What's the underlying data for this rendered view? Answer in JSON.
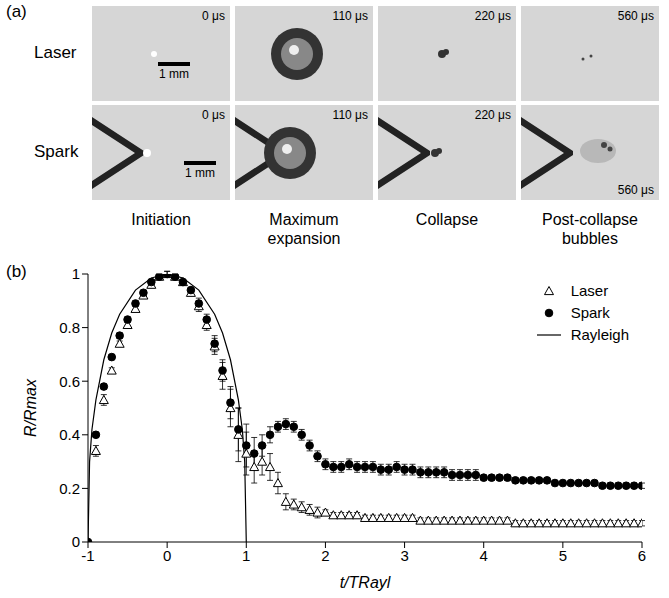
{
  "panel_a": {
    "label": "(a)",
    "rows": [
      {
        "name": "Laser",
        "times": [
          "0 μs",
          "110 μs",
          "220 μs",
          "560 μs"
        ]
      },
      {
        "name": "Spark",
        "times": [
          "0 μs",
          "110 μs",
          "220 μs",
          "560 μs"
        ]
      }
    ],
    "scale_bar": "1 mm",
    "stages": [
      "Initiation",
      "Maximum expansion",
      "Collapse",
      "Post-collapse bubbles"
    ]
  },
  "chart_data": {
    "label": "(b)",
    "type": "scatter",
    "x_label": "t/TRayl",
    "y_label": "R/Rmax",
    "xlim": [
      -1,
      6
    ],
    "xticks": [
      -1,
      0,
      1,
      2,
      3,
      4,
      5,
      6
    ],
    "ylim": [
      0,
      1
    ],
    "yticks": [
      0,
      0.2,
      0.4,
      0.6,
      0.8,
      1
    ],
    "legend": "upper right",
    "x": [
      -1,
      -0.9,
      -0.8,
      -0.7,
      -0.6,
      -0.5,
      -0.4,
      -0.3,
      -0.2,
      -0.1,
      0,
      0.1,
      0.2,
      0.3,
      0.4,
      0.5,
      0.6,
      0.7,
      0.8,
      0.9,
      1,
      1.1,
      1.2,
      1.3,
      1.4,
      1.5,
      1.6,
      1.7,
      1.8,
      1.9,
      2,
      2.1,
      2.2,
      2.3,
      2.4,
      2.5,
      2.6,
      2.7,
      2.8,
      2.9,
      3,
      3.1,
      3.2,
      3.3,
      3.4,
      3.5,
      3.6,
      3.7,
      3.8,
      3.9,
      4,
      4.1,
      4.2,
      4.3,
      4.4,
      4.5,
      4.6,
      4.7,
      4.8,
      4.9,
      5,
      5.1,
      5.2,
      5.3,
      5.4,
      5.5,
      5.6,
      5.7,
      5.8,
      5.9,
      6
    ],
    "series": [
      {
        "name": "Laser",
        "color": "#000000",
        "marker": "open-triangle",
        "values": [
          0,
          0.34,
          0.53,
          0.64,
          0.74,
          0.81,
          0.87,
          0.92,
          0.96,
          0.99,
          1,
          0.99,
          0.97,
          0.93,
          0.88,
          0.81,
          0.73,
          0.62,
          0.5,
          0.4,
          0.33,
          0.28,
          0.3,
          0.28,
          0.22,
          0.15,
          0.14,
          0.13,
          0.12,
          0.11,
          0.11,
          0.1,
          0.1,
          0.1,
          0.1,
          0.09,
          0.09,
          0.09,
          0.09,
          0.09,
          0.09,
          0.09,
          0.08,
          0.08,
          0.08,
          0.08,
          0.08,
          0.08,
          0.08,
          0.08,
          0.08,
          0.08,
          0.08,
          0.08,
          0.07,
          0.07,
          0.07,
          0.07,
          0.07,
          0.07,
          0.07,
          0.07,
          0.07,
          0.07,
          0.07,
          0.07,
          0.07,
          0.07,
          0.07,
          0.07,
          0.07
        ],
        "errors": [
          0,
          0.02,
          0.02,
          0.01,
          0.01,
          0.01,
          0.01,
          0.01,
          0.01,
          0.01,
          0.01,
          0.01,
          0.01,
          0.01,
          0.02,
          0.02,
          0.03,
          0.05,
          0.07,
          0.1,
          0.08,
          0.06,
          0.05,
          0.05,
          0.04,
          0.03,
          0.02,
          0.02,
          0.02,
          0.02,
          0.01,
          0.01,
          0.01,
          0.01,
          0.01,
          0.01,
          0.01,
          0.01,
          0.01,
          0.01,
          0.01,
          0.01,
          0.01,
          0.01,
          0.01,
          0.01,
          0.01,
          0.01,
          0.01,
          0.01,
          0.01,
          0.01,
          0.01,
          0.01,
          0.01,
          0.01,
          0.01,
          0.01,
          0.01,
          0.01,
          0.01,
          0.01,
          0.01,
          0.01,
          0.01,
          0.01,
          0.01,
          0.01,
          0.01,
          0.01,
          0.01
        ]
      },
      {
        "name": "Spark",
        "color": "#000000",
        "marker": "circle",
        "values": [
          0,
          0.4,
          0.58,
          0.69,
          0.77,
          0.83,
          0.89,
          0.93,
          0.97,
          0.99,
          1,
          0.99,
          0.97,
          0.94,
          0.89,
          0.83,
          0.74,
          0.64,
          0.52,
          0.42,
          0.36,
          0.33,
          0.36,
          0.4,
          0.43,
          0.44,
          0.43,
          0.4,
          0.36,
          0.32,
          0.29,
          0.28,
          0.28,
          0.29,
          0.28,
          0.28,
          0.28,
          0.27,
          0.27,
          0.28,
          0.27,
          0.27,
          0.26,
          0.26,
          0.26,
          0.26,
          0.25,
          0.25,
          0.25,
          0.25,
          0.24,
          0.24,
          0.24,
          0.24,
          0.23,
          0.23,
          0.23,
          0.23,
          0.23,
          0.22,
          0.22,
          0.22,
          0.22,
          0.22,
          0.22,
          0.21,
          0.21,
          0.21,
          0.21,
          0.21,
          0.21
        ],
        "errors": [
          0,
          0.01,
          0.01,
          0.01,
          0.01,
          0.01,
          0.01,
          0.01,
          0.01,
          0.01,
          0.01,
          0.01,
          0.01,
          0.01,
          0.02,
          0.02,
          0.03,
          0.04,
          0.06,
          0.08,
          0.08,
          0.06,
          0.04,
          0.03,
          0.02,
          0.02,
          0.02,
          0.02,
          0.02,
          0.02,
          0.02,
          0.02,
          0.02,
          0.02,
          0.02,
          0.02,
          0.02,
          0.02,
          0.02,
          0.02,
          0.02,
          0.02,
          0.02,
          0.02,
          0.02,
          0.02,
          0.02,
          0.02,
          0.02,
          0.02,
          0.01,
          0.01,
          0.01,
          0.01,
          0.01,
          0.01,
          0.01,
          0.01,
          0.01,
          0.01,
          0.01,
          0.01,
          0.01,
          0.01,
          0.01,
          0.01,
          0.01,
          0.01,
          0.01,
          0.01,
          0.01
        ]
      },
      {
        "name": "Rayleigh",
        "color": "#000000",
        "type": "line",
        "line_style": "solid",
        "x": [
          -1,
          -0.98,
          -0.95,
          -0.9,
          -0.8,
          -0.7,
          -0.6,
          -0.4,
          -0.2,
          0,
          0.2,
          0.4,
          0.6,
          0.7,
          0.8,
          0.9,
          0.95,
          0.98,
          1
        ],
        "values": [
          0,
          0.3,
          0.42,
          0.53,
          0.68,
          0.78,
          0.85,
          0.94,
          0.985,
          1,
          0.985,
          0.94,
          0.85,
          0.78,
          0.68,
          0.53,
          0.42,
          0.3,
          0
        ]
      }
    ]
  }
}
